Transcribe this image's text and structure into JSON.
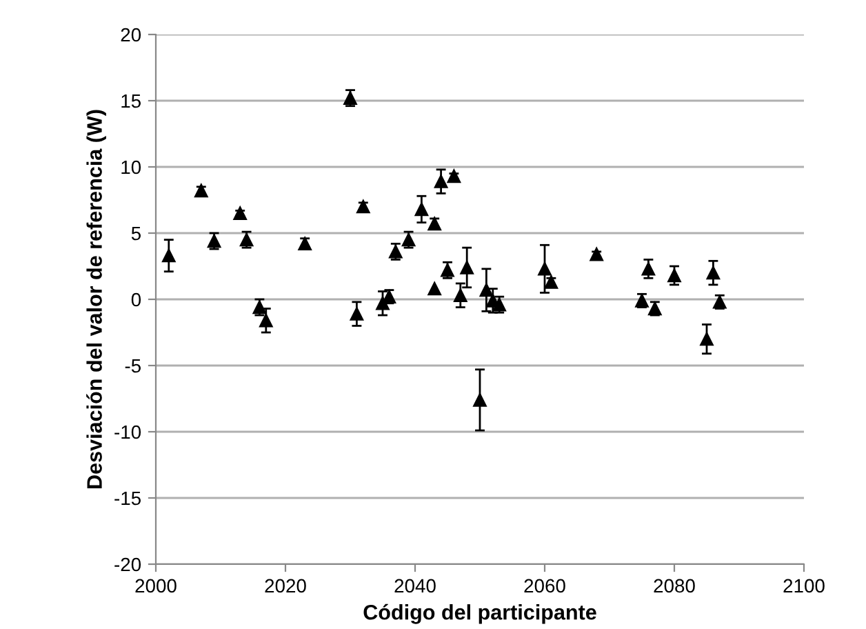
{
  "chart_data": {
    "type": "scatter",
    "xlabel": "Código del participante",
    "ylabel": "Desviación del valor de referencia (W)",
    "x": [
      2002,
      2007,
      2009,
      2013,
      2014,
      2016,
      2017,
      2023,
      2030,
      2031,
      2032,
      2035,
      2036,
      2037,
      2039,
      2041,
      2043,
      2043,
      2044,
      2045,
      2046,
      2047,
      2048,
      2050,
      2051,
      2052,
      2053,
      2060,
      2061,
      2068,
      2075,
      2076,
      2077,
      2080,
      2085,
      2086,
      2087
    ],
    "series": [
      {
        "color": "#000000",
        "values": [
          3.3,
          8.2,
          4.4,
          6.5,
          4.5,
          -0.6,
          -1.6,
          4.2,
          15.2,
          -1.1,
          7.0,
          -0.3,
          0.2,
          3.6,
          4.5,
          6.8,
          5.7,
          0.8,
          8.9,
          2.2,
          9.3,
          0.3,
          2.4,
          -7.6,
          0.7,
          -0.1,
          -0.4,
          2.3,
          1.3,
          3.4,
          -0.1,
          2.3,
          -0.7,
          1.8,
          -3.0,
          2.0,
          -0.2
        ],
        "errors": [
          1.2,
          0.3,
          0.6,
          0.2,
          0.6,
          0.6,
          0.9,
          0.4,
          0.6,
          0.9,
          0.3,
          0.9,
          0.5,
          0.6,
          0.6,
          1.0,
          0.4,
          null,
          0.9,
          0.6,
          0.2,
          0.9,
          1.5,
          2.3,
          1.6,
          0.9,
          0.6,
          1.8,
          0.3,
          0.2,
          0.5,
          0.7,
          0.5,
          0.7,
          1.1,
          0.9,
          0.5
        ]
      }
    ],
    "marker": "triangle",
    "grid": "y",
    "legend": false,
    "xlim": [
      2000,
      2100
    ],
    "xticks": [
      2000,
      2020,
      2040,
      2060,
      2080,
      2100
    ],
    "ylim": [
      -20,
      20
    ],
    "yticks": [
      -20,
      -15,
      -10,
      -5,
      0,
      5,
      10,
      15,
      20
    ]
  }
}
